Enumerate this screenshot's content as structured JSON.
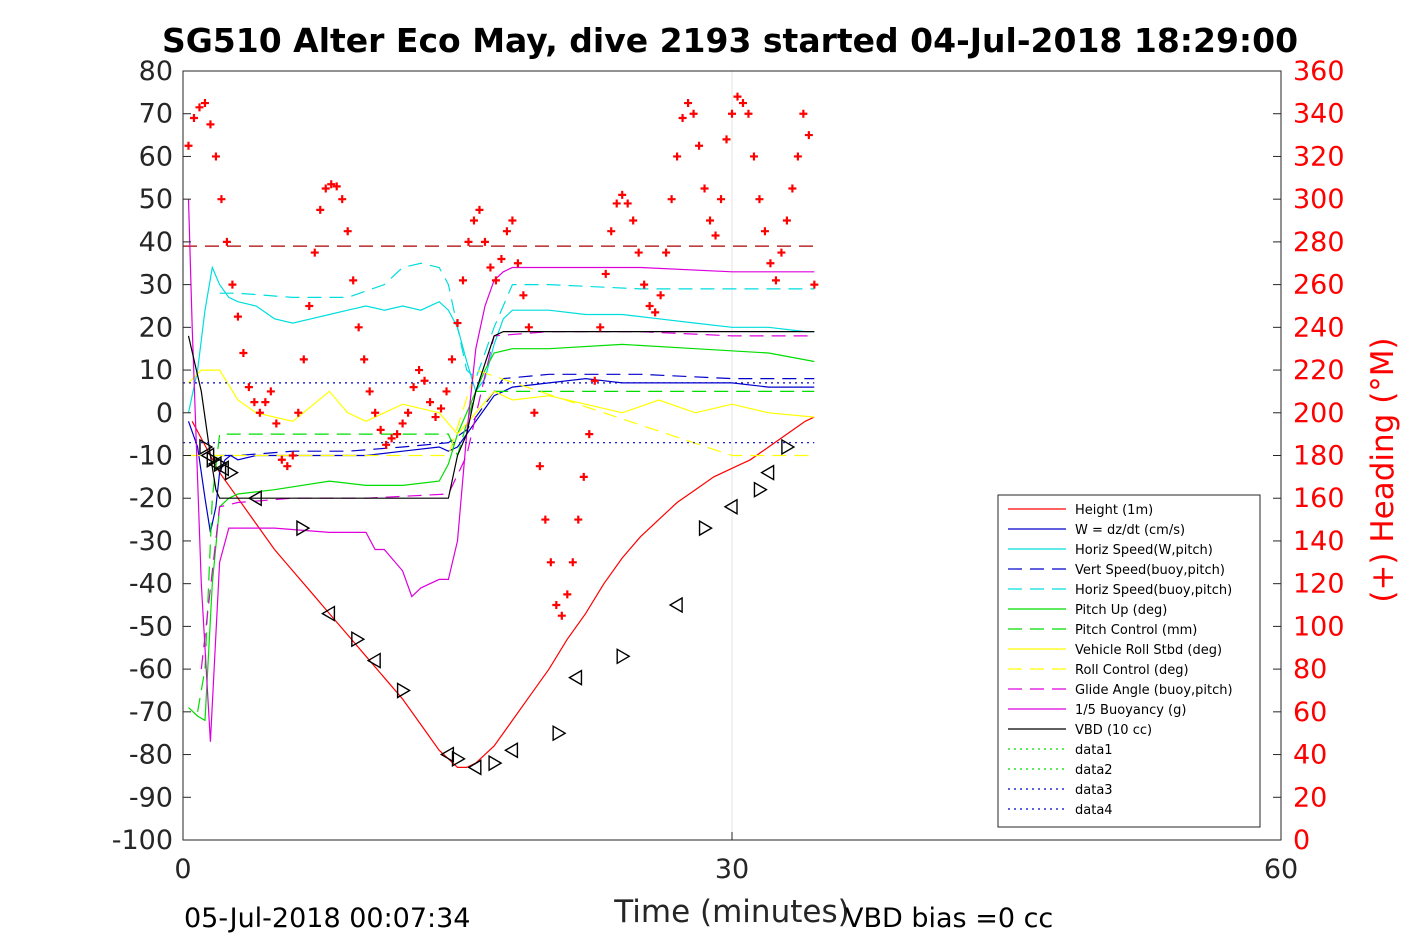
{
  "chart_data": {
    "type": "line",
    "title": "SG510 Alter Eco May, dive 2193 started 04-Jul-2018 18:29:00",
    "xlabel": "Time (minutes)",
    "ylabel": "",
    "y2label": "(+) Heading (°M)",
    "xlim": [
      0,
      60
    ],
    "ylim": [
      -100,
      80
    ],
    "y2lim": [
      0,
      360
    ],
    "xticks": [
      "0",
      "30",
      "60"
    ],
    "yticks": [
      "80",
      "70",
      "60",
      "50",
      "40",
      "30",
      "20",
      "10",
      "0",
      "-10",
      "-20",
      "-30",
      "-40",
      "-50",
      "-60",
      "-70",
      "-80",
      "-90",
      "-100"
    ],
    "y2ticks": [
      "360",
      "340",
      "320",
      "300",
      "280",
      "260",
      "240",
      "220",
      "200",
      "180",
      "160",
      "140",
      "120",
      "100",
      "80",
      "60",
      "40",
      "20",
      "0"
    ],
    "grid": "x-only",
    "legend_position": "lower-right",
    "footer_left": "05-Jul-2018 00:07:34",
    "footer_right": "VBD bias =0 cc",
    "series": [
      {
        "name": "Height (1m)",
        "color": "#ff0000",
        "dash": "solid",
        "x": [
          0.5,
          1,
          1.5,
          2,
          3,
          4,
          5,
          6,
          7,
          8,
          9,
          10,
          11,
          12,
          13,
          14,
          14.5,
          15,
          15.5,
          16,
          17,
          18,
          19,
          20,
          21,
          22,
          23,
          24,
          25,
          26,
          27,
          28,
          29,
          30,
          31,
          32,
          33,
          34,
          34.5
        ],
        "y": [
          -2,
          -6,
          -10,
          -14,
          -20,
          -26,
          -32,
          -37,
          -42,
          -47,
          -52,
          -57,
          -62,
          -67,
          -73,
          -79,
          -81,
          -83,
          -83,
          -82,
          -78,
          -72,
          -66,
          -60,
          -53,
          -47,
          -40,
          -34,
          -29,
          -25,
          -21,
          -18,
          -15,
          -13,
          -11,
          -8,
          -5,
          -2,
          -1
        ]
      },
      {
        "name": "W = dz/dt (cm/s)",
        "color": "#0000cc",
        "dash": "solid",
        "x": [
          0.3,
          0.8,
          1.2,
          1.5,
          1.8,
          2,
          2.3,
          2.6,
          3,
          4,
          6,
          8,
          10,
          12,
          14,
          14.5,
          15,
          15.5,
          16,
          16.5,
          17,
          17.5,
          18,
          20,
          22,
          24,
          26,
          28,
          30,
          32,
          34,
          34.5
        ],
        "y": [
          -2,
          -8,
          -20,
          -28,
          -22,
          -14,
          -11,
          -10,
          -11,
          -10,
          -10,
          -10,
          -10,
          -9,
          -8,
          -9,
          -8,
          -5,
          -2,
          1,
          4,
          5,
          6,
          7,
          8,
          7,
          7,
          7,
          7,
          6,
          6,
          6
        ]
      },
      {
        "name": "Horiz Speed(W,pitch)",
        "color": "#00dddd",
        "dash": "solid",
        "x": [
          0.3,
          0.8,
          1.2,
          1.6,
          2,
          2.5,
          3,
          4,
          5,
          6,
          7,
          8,
          9,
          10,
          11,
          12,
          13,
          14,
          14.5,
          15,
          15.5,
          16,
          16.5,
          17,
          17.5,
          18,
          20,
          22,
          24,
          26,
          28,
          30,
          32,
          34,
          34.5
        ],
        "y": [
          0,
          10,
          24,
          34,
          30,
          27,
          26,
          25,
          22,
          21,
          22,
          23,
          24,
          25,
          24,
          25,
          24,
          26,
          24,
          20,
          12,
          5,
          8,
          16,
          22,
          24,
          24,
          23,
          23,
          22,
          21,
          20,
          20,
          19,
          19
        ]
      },
      {
        "name": "Vert Speed(buoy,pitch)",
        "color": "#0000cc",
        "dash": "long",
        "x": [
          2,
          3,
          6,
          9,
          12,
          14.5,
          15.5,
          16.5,
          17.5,
          20,
          25,
          30,
          34.5
        ],
        "y": [
          -10,
          -10,
          -9,
          -9,
          -8,
          -7,
          -4,
          2,
          8,
          9,
          9,
          8,
          8
        ]
      },
      {
        "name": "Horiz Speed(buoy,pitch)",
        "color": "#00dddd",
        "dash": "long",
        "x": [
          2,
          3,
          6,
          9,
          11,
          12,
          13,
          14,
          14.5,
          15,
          15.5,
          16,
          17,
          18,
          20,
          25,
          30,
          34.5
        ],
        "y": [
          28,
          28,
          27,
          27,
          30,
          34,
          35,
          34,
          30,
          20,
          10,
          8,
          20,
          30,
          30,
          29,
          29,
          29
        ]
      },
      {
        "name": "Pitch Up (deg)",
        "color": "#00dd00",
        "dash": "solid",
        "x": [
          0.3,
          0.8,
          1.2,
          1.6,
          2,
          2.5,
          3,
          5,
          8,
          10,
          12,
          14,
          14.5,
          15,
          15.5,
          16,
          16.5,
          17,
          18,
          20,
          24,
          28,
          32,
          34.5
        ],
        "y": [
          -69,
          -71,
          -72,
          -40,
          -22,
          -20,
          -19,
          -18,
          -16,
          -17,
          -17,
          -16,
          -12,
          -5,
          0,
          5,
          10,
          14,
          15,
          15,
          16,
          15,
          14,
          12
        ]
      },
      {
        "name": "Pitch Control (mm)",
        "color": "#00dd00",
        "dash": "long",
        "x": [
          0.8,
          1.2,
          1.6,
          2,
          2.5,
          5,
          14.5,
          15,
          16,
          17,
          34.5
        ],
        "y": [
          -70,
          -60,
          -20,
          -5,
          -5,
          -5,
          -5,
          -10,
          5,
          5,
          5
        ]
      },
      {
        "name": "Vehicle Roll Stbd (deg)",
        "color": "#ffff00",
        "dash": "solid",
        "x": [
          0.3,
          1,
          2,
          3,
          4,
          6,
          8,
          9,
          10,
          12,
          14,
          15,
          16,
          17,
          18,
          20,
          22,
          24,
          26,
          28,
          30,
          32,
          34.5
        ],
        "y": [
          7,
          10,
          10,
          3,
          0,
          -2,
          5,
          0,
          -2,
          2,
          0,
          -5,
          0,
          5,
          3,
          4,
          2,
          0,
          3,
          0,
          2,
          0,
          -1
        ]
      },
      {
        "name": "Roll Control (deg)",
        "color": "#ffff00",
        "dash": "long",
        "x": [
          0.3,
          2,
          14.5,
          16,
          30,
          34.5
        ],
        "y": [
          -10,
          -10,
          -10,
          10,
          -10,
          -10
        ]
      },
      {
        "name": "Glide Angle (buoy,pitch)",
        "color": "#dd00dd",
        "dash": "long",
        "x": [
          1,
          2,
          3,
          6,
          10,
          14.5,
          15.5,
          17,
          20,
          25,
          30,
          34.5
        ],
        "y": [
          -60,
          -22,
          -21,
          -20,
          -20,
          -19,
          -10,
          18,
          19,
          19,
          18,
          18
        ]
      },
      {
        "name": "1/5 Buoyancy (g)",
        "color": "#dd00dd",
        "dash": "solid",
        "x": [
          0.3,
          0.5,
          1,
          1.5,
          2,
          2.5,
          3,
          5,
          8,
          10,
          10.5,
          11,
          12,
          12.5,
          13,
          14,
          14.5,
          15,
          15.5,
          16,
          16.5,
          17,
          17.5,
          18,
          20,
          25,
          30,
          34.5
        ],
        "y": [
          50,
          20,
          -40,
          -77,
          -35,
          -27,
          -27,
          -27,
          -28,
          -28,
          -32,
          -32,
          -37,
          -43,
          -41,
          -39,
          -39,
          -30,
          -5,
          15,
          25,
          31,
          33,
          34,
          34,
          34,
          33,
          33
        ]
      },
      {
        "name": "VBD (10 cc)",
        "color": "#000000",
        "dash": "solid",
        "x": [
          0.3,
          1,
          1.5,
          1.8,
          2,
          2.5,
          5,
          10,
          14.5,
          15,
          15.5,
          16,
          17,
          17.5,
          20,
          25,
          30,
          34.5
        ],
        "y": [
          18,
          5,
          -10,
          -18,
          -20,
          -20,
          -20,
          -20,
          -20,
          -10,
          -5,
          5,
          18,
          19,
          19,
          19,
          19,
          19
        ]
      },
      {
        "name": "data1",
        "color": "#00dd00",
        "dash": "dot",
        "x": [],
        "y": []
      },
      {
        "name": "data2",
        "color": "#00dd00",
        "dash": "dot",
        "x": [],
        "y": []
      },
      {
        "name": "data3",
        "color": "#0000cc",
        "dash": "dot",
        "x": [
          0,
          34.5
        ],
        "y": [
          7,
          7
        ]
      },
      {
        "name": "data4",
        "color": "#0000cc",
        "dash": "dot",
        "x": [
          0,
          34.5
        ],
        "y": [
          -7,
          -7
        ]
      }
    ],
    "reference_lines": [
      {
        "color": "#aa0000",
        "dash": "long",
        "y": 39,
        "x": [
          0,
          34.5
        ]
      }
    ],
    "heading_points": {
      "color": "#ff0000",
      "marker": "+",
      "x": [
        0.3,
        0.6,
        0.9,
        1.2,
        1.5,
        1.8,
        2.1,
        2.4,
        2.7,
        3.0,
        3.3,
        3.6,
        3.9,
        4.2,
        4.5,
        4.8,
        5.1,
        5.4,
        5.7,
        6.0,
        6.3,
        6.6,
        6.9,
        7.2,
        7.5,
        7.8,
        8.1,
        8.4,
        8.7,
        9.0,
        9.3,
        9.6,
        9.9,
        10.2,
        10.5,
        10.8,
        11.1,
        11.4,
        11.7,
        12.0,
        12.3,
        12.6,
        12.9,
        13.2,
        13.5,
        13.8,
        14.1,
        14.4,
        14.7,
        15.0,
        15.3,
        15.6,
        15.9,
        16.2,
        16.5,
        16.8,
        17.1,
        17.4,
        17.7,
        18.0,
        18.3,
        18.6,
        18.9,
        19.2,
        19.5,
        19.8,
        20.1,
        20.4,
        20.7,
        21.0,
        21.3,
        21.6,
        21.9,
        22.2,
        22.5,
        22.8,
        23.1,
        23.4,
        23.7,
        24.0,
        24.3,
        24.6,
        24.9,
        25.2,
        25.5,
        25.8,
        26.1,
        26.4,
        26.7,
        27.0,
        27.3,
        27.6,
        27.9,
        28.2,
        28.5,
        28.8,
        29.1,
        29.4,
        29.7,
        30.0,
        30.3,
        30.6,
        30.9,
        31.2,
        31.5,
        31.8,
        32.1,
        32.4,
        32.7,
        33.0,
        33.3,
        33.6,
        33.9,
        34.2,
        34.5
      ],
      "y": [
        325,
        338,
        343,
        345,
        335,
        320,
        300,
        280,
        260,
        245,
        228,
        212,
        205,
        200,
        205,
        210,
        195,
        178,
        175,
        180,
        200,
        225,
        250,
        275,
        295,
        305,
        307,
        306,
        300,
        285,
        262,
        240,
        225,
        210,
        200,
        192,
        185,
        188,
        190,
        195,
        200,
        212,
        220,
        215,
        205,
        198,
        202,
        210,
        225,
        242,
        262,
        280,
        290,
        295,
        280,
        268,
        262,
        272,
        285,
        290,
        270,
        255,
        240,
        200,
        175,
        150,
        130,
        110,
        105,
        115,
        130,
        150,
        170,
        190,
        215,
        240,
        265,
        285,
        298,
        302,
        298,
        290,
        275,
        260,
        250,
        247,
        255,
        275,
        300,
        320,
        338,
        345,
        340,
        325,
        305,
        290,
        283,
        300,
        328,
        340,
        348,
        345,
        340,
        320,
        300,
        285,
        270,
        262,
        275,
        290,
        305,
        320,
        340,
        330,
        260
      ]
    },
    "dive_markers": {
      "color": "#000000",
      "marker": "triangle",
      "x": [
        1.2,
        1.4,
        1.6,
        1.8,
        2.0,
        2.2,
        2.6,
        4.0,
        6.5,
        8.0,
        9.5,
        10.5,
        12.0,
        14.5,
        15.0,
        16.0,
        17.0,
        18.0,
        20.5,
        21.5,
        24.0,
        27.0,
        28.5,
        30.0,
        31.5,
        32.0,
        33.0
      ],
      "y": [
        -8,
        -10,
        -11,
        -12,
        -12,
        -13,
        -14,
        -20,
        -27,
        -47,
        -53,
        -58,
        -65,
        -80,
        -81,
        -83,
        -82,
        -79,
        -75,
        -62,
        -57,
        -45,
        -27,
        -22,
        -18,
        -14,
        -8
      ]
    }
  }
}
